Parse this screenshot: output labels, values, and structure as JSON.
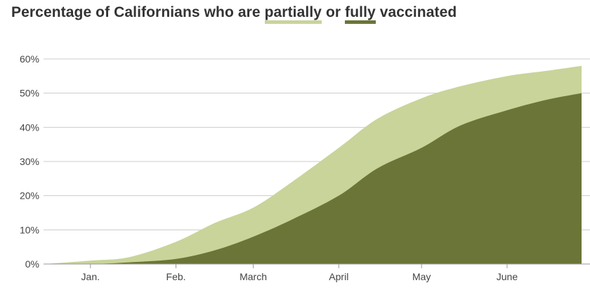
{
  "title": {
    "prefix": "Percentage of Californians who are ",
    "partially": "partially",
    "middle": " or ",
    "fully": "fully",
    "suffix": " vaccinated"
  },
  "colors": {
    "partial": "#c8d49a",
    "fully": "#6b7537",
    "gridline": "#cccccc",
    "baseline": "#999999"
  },
  "chart_data": {
    "type": "area",
    "title": "Percentage of Californians who are partially or fully vaccinated",
    "xlabel": "",
    "ylabel": "",
    "x": [
      "2020-12-15",
      "2021-01-01",
      "2021-01-15",
      "2021-02-01",
      "2021-02-15",
      "2021-03-01",
      "2021-03-15",
      "2021-04-01",
      "2021-04-15",
      "2021-05-01",
      "2021-05-15",
      "2021-06-01",
      "2021-06-15",
      "2021-06-28"
    ],
    "xlim": [
      "2020-12-15",
      "2021-06-28"
    ],
    "ylim": [
      0,
      60
    ],
    "y_ticks": [
      0,
      10,
      20,
      30,
      40,
      50,
      60
    ],
    "y_tick_labels": [
      "0%",
      "10%",
      "20%",
      "30%",
      "40%",
      "50%",
      "60%"
    ],
    "x_ticks": [
      "2021-01-01",
      "2021-02-01",
      "2021-03-01",
      "2021-04-01",
      "2021-05-01",
      "2021-06-01"
    ],
    "x_tick_labels": [
      "Jan.",
      "Feb.",
      "March",
      "April",
      "May",
      "June"
    ],
    "grid": true,
    "series": [
      {
        "name": "partially",
        "values": [
          0,
          1,
          2,
          6.5,
          12,
          16.5,
          24,
          34,
          42.5,
          48.5,
          52,
          55,
          56.5,
          58
        ]
      },
      {
        "name": "fully",
        "values": [
          0,
          0,
          0.5,
          1.5,
          4,
          8,
          13,
          20,
          28,
          34,
          40.5,
          45,
          48,
          50
        ]
      }
    ]
  }
}
